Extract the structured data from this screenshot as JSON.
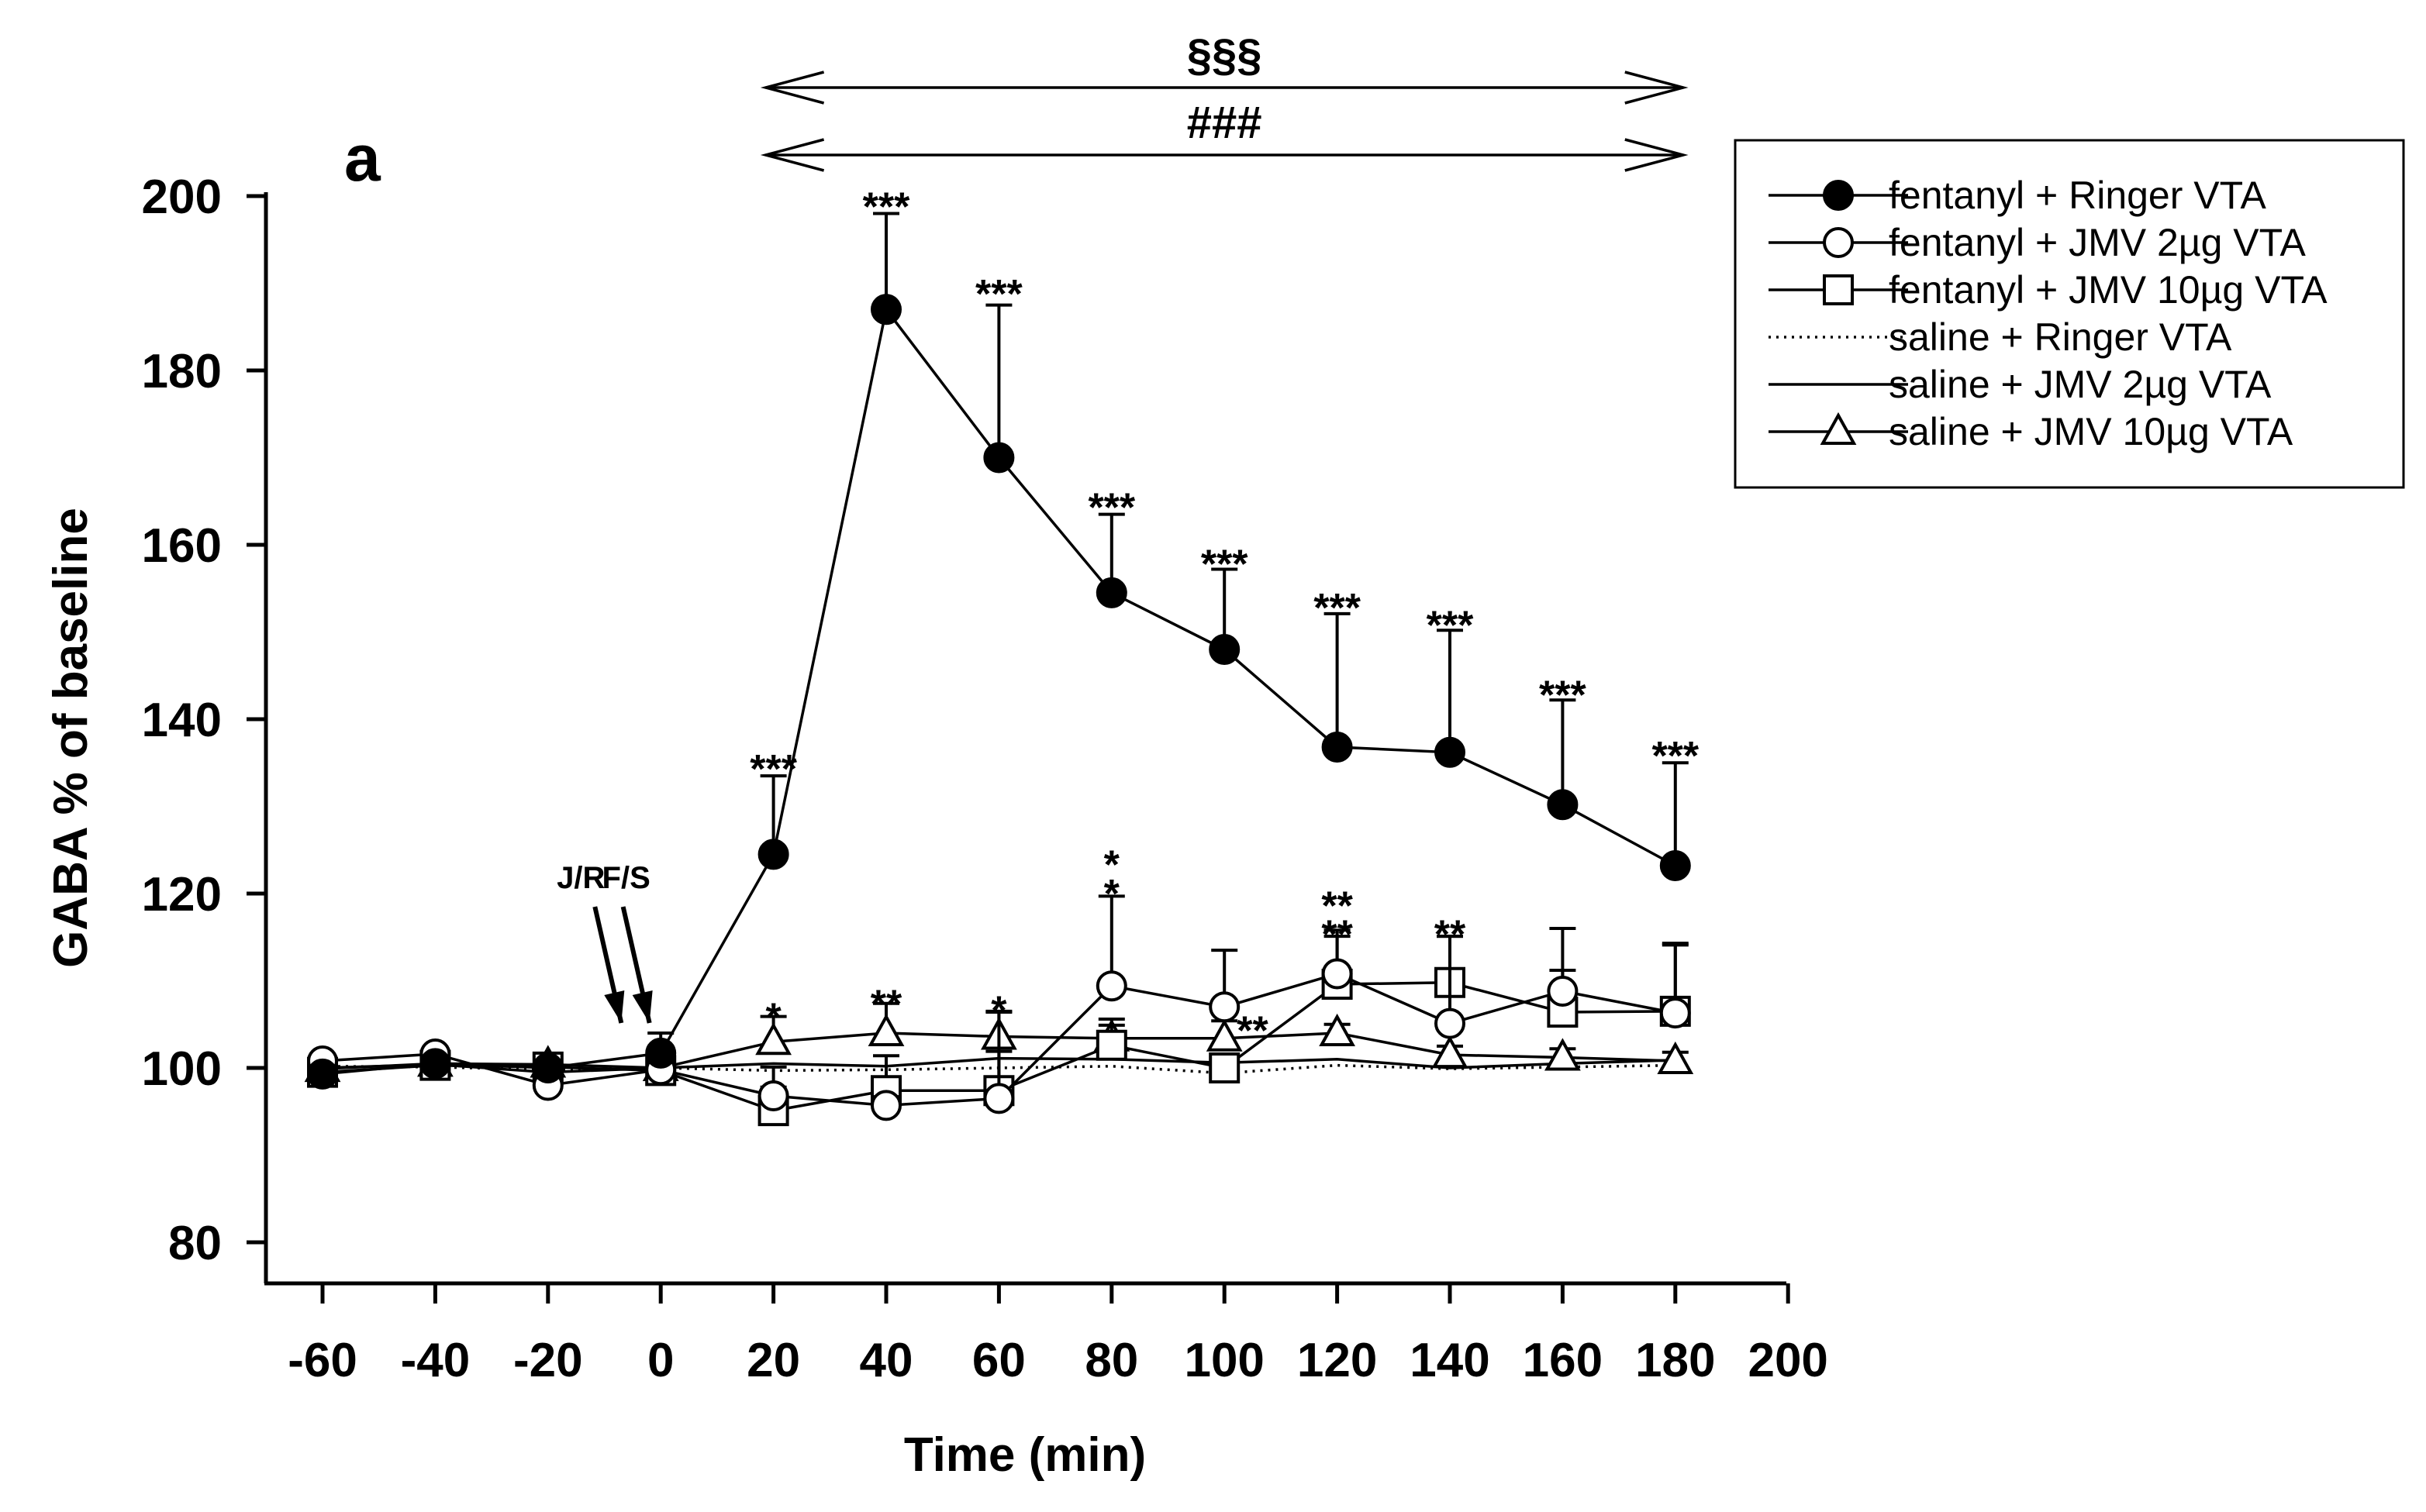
{
  "chart_data": {
    "type": "line",
    "panel_label": "a",
    "xlabel": "Time (min)",
    "ylabel": "GABA % of baseline",
    "xlim": [
      -70,
      200
    ],
    "ylim": [
      75,
      200
    ],
    "x_ticks": [
      -60,
      -40,
      -20,
      0,
      20,
      40,
      60,
      80,
      100,
      120,
      140,
      160,
      180,
      200
    ],
    "y_ticks": [
      80,
      100,
      120,
      140,
      160,
      180,
      200
    ],
    "grid": false,
    "legend_position": "top-right",
    "series": [
      {
        "name": "fentanyl + Ringer VTA",
        "marker": "filled-circle",
        "line": "solid",
        "x": [
          -60,
          -40,
          -20,
          0,
          20,
          40,
          60,
          80,
          100,
          120,
          140,
          160,
          180
        ],
        "y": [
          99.3,
          100.5,
          100.0,
          101.7,
          124.5,
          187,
          170,
          154.5,
          148,
          136.8,
          136.2,
          130.2,
          123.2
        ],
        "err": [
          0.5,
          0.5,
          0.5,
          2.3,
          9.0,
          11.0,
          17.5,
          9.0,
          9.2,
          15.3,
          14.0,
          12.0,
          11.8
        ]
      },
      {
        "name": "fentanyl + JMV 2µg VTA",
        "marker": "open-circle",
        "line": "solid",
        "x": [
          -60,
          -40,
          -20,
          0,
          20,
          40,
          60,
          80,
          100,
          120,
          140,
          160,
          180
        ],
        "y": [
          100.8,
          101.6,
          98.0,
          99.8,
          96.8,
          95.7,
          96.5,
          109.4,
          107.0,
          110.8,
          105.1,
          108.8,
          106.3
        ],
        "err": [
          0.5,
          0.5,
          0.5,
          0.5,
          1.0,
          1.0,
          10.0,
          10.3,
          6.5,
          5.0,
          10.0,
          7.2,
          7.8
        ]
      },
      {
        "name": "fentanyl + JMV 10µg VTA",
        "marker": "open-square",
        "line": "solid",
        "x": [
          -60,
          -40,
          -20,
          0,
          20,
          40,
          60,
          80,
          100,
          120,
          140,
          160,
          180
        ],
        "y": [
          99.5,
          100.3,
          100.1,
          99.7,
          95.1,
          97.4,
          97.4,
          102.6,
          100.0,
          109.6,
          109.8,
          106.4,
          106.5
        ],
        "err": [
          0.5,
          0.5,
          0.8,
          0.5,
          5.0,
          4.0,
          4.5,
          3.0,
          1.5,
          5.5,
          5.3,
          4.8,
          7.8
        ]
      },
      {
        "name": "saline + Ringer VTA",
        "marker": "none",
        "line": "dotted",
        "x": [
          -60,
          -40,
          -20,
          0,
          20,
          40,
          60,
          80,
          100,
          120,
          140,
          160,
          180
        ],
        "y": [
          100.2,
          100.1,
          99.8,
          100.0,
          99.7,
          99.8,
          100.0,
          100.2,
          99.4,
          100.3,
          99.9,
          100.1,
          100.3
        ],
        "err": [
          0,
          0,
          0,
          0,
          0,
          0,
          0,
          0,
          0,
          0,
          0,
          0,
          0
        ]
      },
      {
        "name": "saline + JMV 2µg VTA",
        "marker": "none",
        "line": "solid",
        "x": [
          -60,
          -40,
          -20,
          0,
          20,
          40,
          60,
          80,
          100,
          120,
          140,
          160,
          180
        ],
        "y": [
          100.0,
          100.4,
          99.5,
          100.0,
          100.5,
          100.2,
          101.1,
          101.0,
          100.6,
          101.0,
          100.0,
          100.5,
          100.9
        ],
        "err": [
          0,
          0,
          0,
          0,
          0,
          0,
          0,
          0,
          0,
          0,
          0,
          0,
          0
        ]
      },
      {
        "name": "saline + JMV 10µg VTA",
        "marker": "open-triangle",
        "line": "solid",
        "x": [
          -60,
          -40,
          -20,
          0,
          20,
          40,
          60,
          80,
          100,
          120,
          140,
          160,
          180
        ],
        "y": [
          99.9,
          100.5,
          100.4,
          100.0,
          103.0,
          104.0,
          103.6,
          103.4,
          103.4,
          104.0,
          101.5,
          101.2,
          100.8
        ],
        "err": [
          0.5,
          0.5,
          0.5,
          0.5,
          2.9,
          3.4,
          2.8,
          1.5,
          2.0,
          1.0,
          1.0,
          1.0,
          1.0
        ]
      }
    ],
    "annotations": [
      {
        "text": "***",
        "x": 20,
        "y": 134.5
      },
      {
        "text": "***",
        "x": 40,
        "y": 199
      },
      {
        "text": "***",
        "x": 60,
        "y": 189
      },
      {
        "text": "***",
        "x": 80,
        "y": 164.5
      },
      {
        "text": "***",
        "x": 100,
        "y": 158
      },
      {
        "text": "***",
        "x": 120,
        "y": 153
      },
      {
        "text": "***",
        "x": 140,
        "y": 151
      },
      {
        "text": "***",
        "x": 160,
        "y": 143
      },
      {
        "text": "***",
        "x": 180,
        "y": 136
      },
      {
        "text": "*",
        "x": 20,
        "y": 106
      },
      {
        "text": "**",
        "x": 40,
        "y": 107.5
      },
      {
        "text": "*",
        "x": 60,
        "y": 106.8
      },
      {
        "text": "*",
        "x": 80,
        "y": 120.2
      },
      {
        "text": "*",
        "x": 80,
        "y": 123.5
      },
      {
        "text": "**",
        "x": 105,
        "y": 104.5
      },
      {
        "text": "**",
        "x": 120,
        "y": 115.5
      },
      {
        "text": "**",
        "x": 120,
        "y": 118.8
      },
      {
        "text": "**",
        "x": 140,
        "y": 115.5
      }
    ],
    "injection_markers": [
      {
        "text": "J/R",
        "x": -7
      },
      {
        "text": "F/S",
        "x": -2
      }
    ],
    "range_brackets": [
      {
        "text": "§§§",
        "from": 20,
        "to": 180,
        "level": 1
      },
      {
        "text": "###",
        "from": 20,
        "to": 180,
        "level": 2
      }
    ]
  }
}
